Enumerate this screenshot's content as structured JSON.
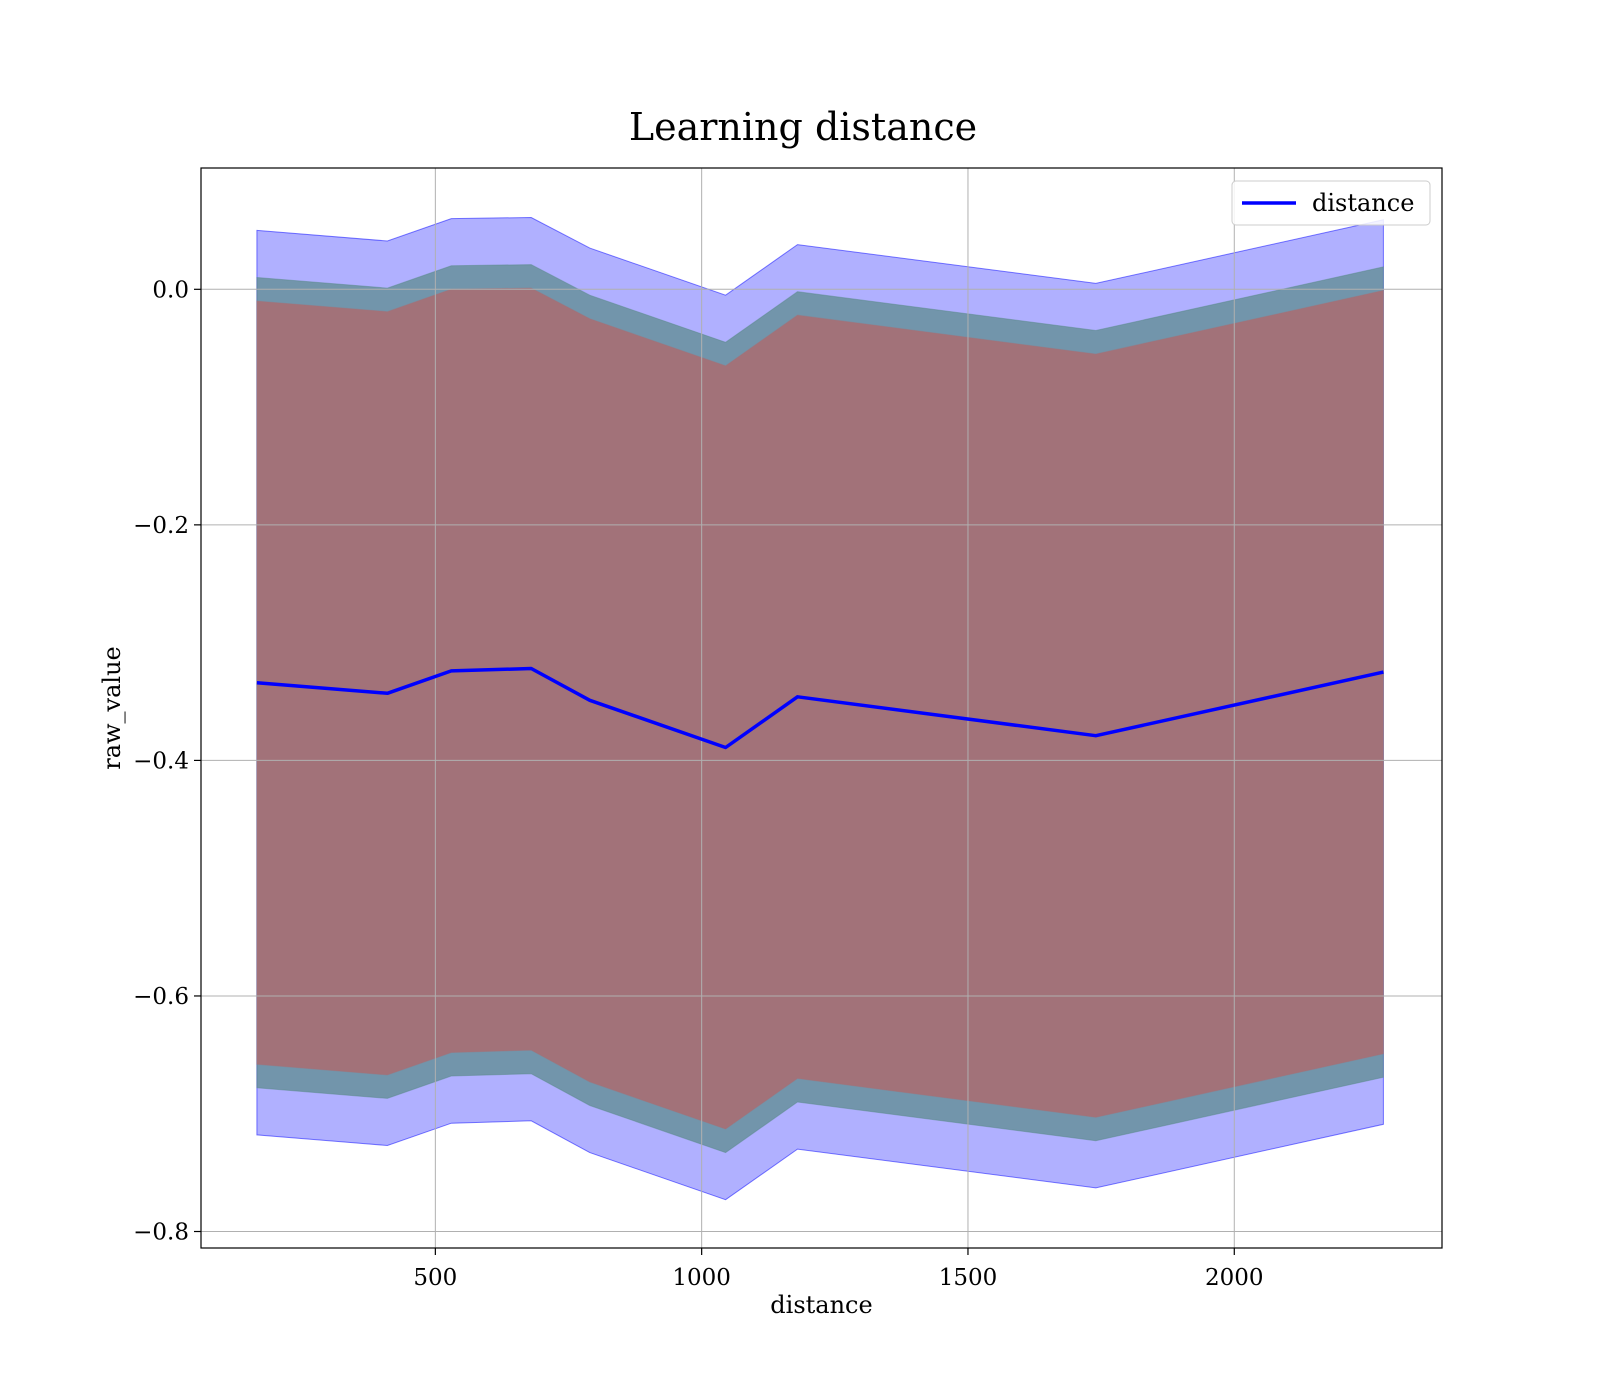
{
  "chart_data": {
    "type": "area",
    "title": "Learning distance",
    "xlabel": "distance",
    "ylabel": "raw_value",
    "xlim": [
      60,
      2390
    ],
    "ylim": [
      -0.814,
      0.103
    ],
    "x_ticks": [
      500,
      1000,
      1500,
      2000
    ],
    "x_tick_labels": [
      "500",
      "1000",
      "1500",
      "2000"
    ],
    "y_ticks": [
      0.0,
      -0.2,
      -0.4,
      -0.6,
      -0.8
    ],
    "y_tick_labels": [
      "0.0",
      "−0.2",
      "−0.4",
      "−0.6",
      "−0.8"
    ],
    "grid": true,
    "legend": {
      "position": "top-right",
      "entries": [
        "distance"
      ]
    },
    "x": [
      165,
      410,
      530,
      680,
      790,
      1045,
      1180,
      1740,
      2280
    ],
    "series": [
      {
        "name": "distance",
        "type": "line",
        "color": "#0000ff",
        "values": [
          -0.334,
          -0.343,
          -0.324,
          -0.322,
          -0.349,
          -0.389,
          -0.346,
          -0.379,
          -0.325
        ]
      }
    ],
    "bands": [
      {
        "color": "#0000ff",
        "opacity": 0.31,
        "upper": [
          0.05,
          0.041,
          0.06,
          0.061,
          0.035,
          -0.005,
          0.038,
          0.005,
          0.059
        ],
        "lower": [
          -0.718,
          -0.727,
          -0.708,
          -0.706,
          -0.733,
          -0.773,
          -0.73,
          -0.763,
          -0.709
        ]
      },
      {
        "color": "#5a8a8a",
        "opacity": 0.72,
        "upper": [
          0.01,
          0.001,
          0.02,
          0.021,
          -0.005,
          -0.045,
          -0.002,
          -0.035,
          0.019
        ],
        "lower": [
          -0.678,
          -0.687,
          -0.668,
          -0.666,
          -0.693,
          -0.733,
          -0.69,
          -0.723,
          -0.669
        ]
      },
      {
        "color": "#a27279",
        "opacity": 1.0,
        "upper": [
          -0.01,
          -0.019,
          0.0,
          0.001,
          -0.025,
          -0.065,
          -0.022,
          -0.055,
          -0.001
        ],
        "lower": [
          -0.658,
          -0.667,
          -0.648,
          -0.646,
          -0.673,
          -0.713,
          -0.67,
          -0.703,
          -0.649
        ]
      }
    ]
  }
}
